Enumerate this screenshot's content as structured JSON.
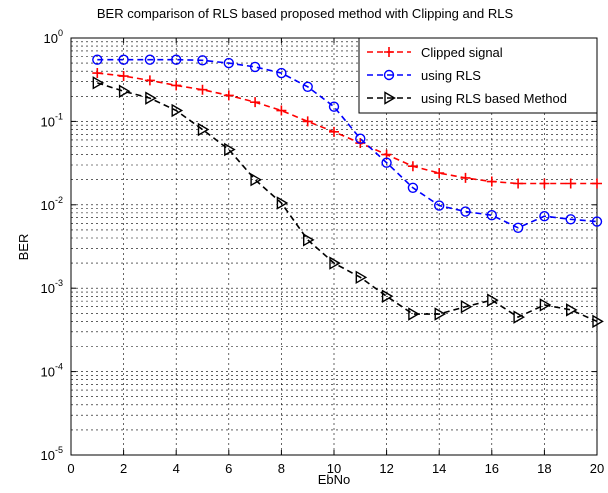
{
  "chart_data": {
    "type": "line",
    "title": "BER comparison of RLS based proposed method with Clipping and RLS",
    "xlabel": "EbNo",
    "ylabel": "BER",
    "xlim": [
      0,
      20
    ],
    "ylim": [
      1e-05,
      1
    ],
    "yscale": "log",
    "grid": true,
    "legend_position": "top-right",
    "x_ticks": [
      "0",
      "2",
      "4",
      "6",
      "8",
      "10",
      "12",
      "14",
      "16",
      "18",
      "20"
    ],
    "y_ticks": [
      {
        "base": "10",
        "exp": "0"
      },
      {
        "base": "10",
        "exp": "-1"
      },
      {
        "base": "10",
        "exp": "-2"
      },
      {
        "base": "10",
        "exp": "-3"
      },
      {
        "base": "10",
        "exp": "-4"
      },
      {
        "base": "10",
        "exp": "-5"
      }
    ],
    "x": [
      1,
      2,
      3,
      4,
      5,
      6,
      7,
      8,
      9,
      10,
      11,
      12,
      13,
      14,
      15,
      16,
      17,
      18,
      19,
      20
    ],
    "series": [
      {
        "name": "Clipped signal",
        "color": "#ff0000",
        "marker": "plus",
        "values": [
          0.38,
          0.35,
          0.31,
          0.27,
          0.24,
          0.205,
          0.17,
          0.135,
          0.1,
          0.075,
          0.055,
          0.04,
          0.029,
          0.024,
          0.021,
          0.019,
          0.018,
          0.018,
          0.018,
          0.018
        ]
      },
      {
        "name": "using RLS",
        "color": "#0000ff",
        "marker": "circle",
        "values": [
          0.55,
          0.55,
          0.55,
          0.55,
          0.54,
          0.5,
          0.45,
          0.38,
          0.26,
          0.15,
          0.062,
          0.032,
          0.016,
          0.0098,
          0.0083,
          0.0075,
          0.0053,
          0.0073,
          0.0067,
          0.0063
        ]
      },
      {
        "name": "using RLS based Method",
        "color": "#000000",
        "marker": "triangle-right",
        "values": [
          0.29,
          0.23,
          0.19,
          0.135,
          0.08,
          0.046,
          0.02,
          0.0105,
          0.0038,
          0.002,
          0.00135,
          0.0008,
          0.00049,
          0.00049,
          0.0006,
          0.00072,
          0.00045,
          0.00063,
          0.00055,
          0.0004
        ]
      }
    ]
  }
}
